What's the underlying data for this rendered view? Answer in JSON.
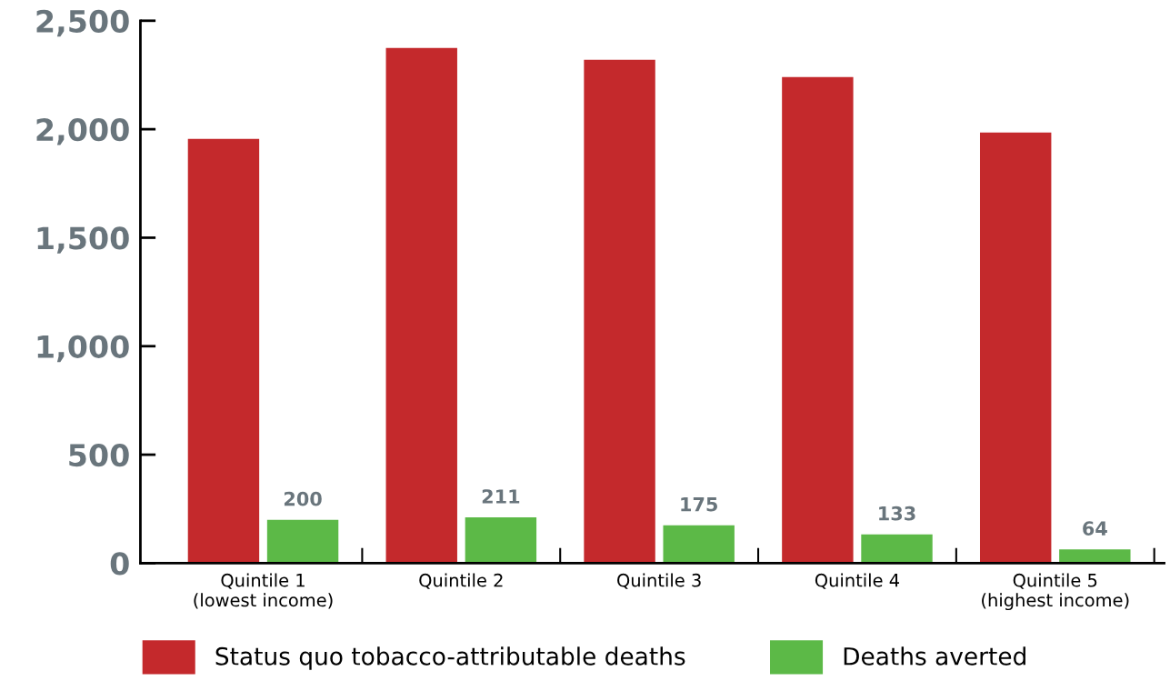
{
  "chart_data": {
    "type": "bar",
    "categories": [
      "Quintile 1\n(lowest income)",
      "Quintile 2",
      "Quintile 3",
      "Quintile 4",
      "Quintile 5\n(highest income)"
    ],
    "series": [
      {
        "name": "Status quo tobacco-attributable deaths",
        "color": "#c4292c",
        "values": [
          1955,
          2375,
          2320,
          2240,
          1985
        ]
      },
      {
        "name": "Deaths averted",
        "color": "#5cb947",
        "values": [
          200,
          211,
          175,
          133,
          64
        ],
        "value_labels": [
          "200",
          "211",
          "175",
          "133",
          "64"
        ]
      }
    ],
    "ylim": [
      0,
      2500
    ],
    "yticks": [
      0,
      {
        "value": 500,
        "label": "500"
      },
      {
        "value": 1000,
        "label": "1,000"
      },
      {
        "value": 1500,
        "label": "1,500"
      },
      {
        "value": 2000,
        "label": "2,000"
      },
      {
        "value": 2500,
        "label": "2,500"
      }
    ],
    "grid": false,
    "legend": "bottom"
  }
}
